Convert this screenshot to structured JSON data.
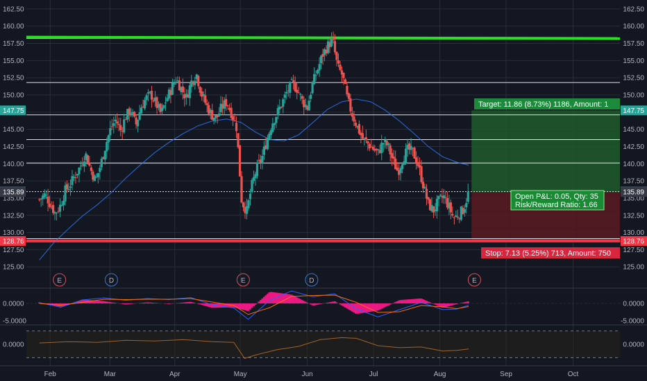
{
  "colors": {
    "background": "#131722",
    "up": "#26a69a",
    "down": "#ef5350",
    "grid": "#2a2e39",
    "text": "#b2b5be",
    "ma": "#3179f5",
    "resistance": "#28e020",
    "stop": "#f23645",
    "target_zone": "#1e5a2a",
    "stop_zone": "#5a1a22",
    "histogram": "#ff1a8c",
    "macd": "#2962ff",
    "signal": "#ff6d00",
    "osc": "#a0632a"
  },
  "price_axis": {
    "ticks": [
      "162.50",
      "160.00",
      "157.50",
      "155.00",
      "152.50",
      "150.00",
      "147.50",
      "145.00",
      "142.50",
      "140.00",
      "137.50",
      "135.00",
      "132.50",
      "130.00",
      "127.50",
      "125.00"
    ],
    "tick_values": [
      162.5,
      160,
      157.5,
      155,
      152.5,
      150,
      147.5,
      145,
      142.5,
      140,
      137.5,
      135,
      132.5,
      130,
      127.5,
      125
    ]
  },
  "price_tags": {
    "left": [
      {
        "label": "147.75",
        "value": 147.75,
        "color": "#26a69a"
      },
      {
        "label": "135.94",
        "value": 135.94,
        "color": "#26a69a"
      },
      {
        "label": "135.89",
        "value": 135.89,
        "color": "#363a45"
      },
      {
        "label": "128.76",
        "value": 128.76,
        "color": "#f23645"
      }
    ],
    "right": [
      {
        "label": "147.75",
        "value": 147.75,
        "color": "#26a69a"
      },
      {
        "label": "135.94",
        "value": 135.94,
        "color": "#26a69a"
      },
      {
        "label": "135.89",
        "value": 135.89,
        "color": "#363a45"
      },
      {
        "label": "128.76",
        "value": 128.76,
        "color": "#f23645"
      }
    ]
  },
  "time_axis": {
    "labels": [
      "Feb",
      "Mar",
      "Apr",
      "May",
      "Jun",
      "Jul",
      "Aug",
      "Sep",
      "Oct"
    ],
    "day_index": [
      15,
      98,
      188,
      279,
      372,
      464,
      556,
      648,
      741
    ]
  },
  "indicator_axes": {
    "macd_ticks": [
      "0.0000",
      "-5.0000"
    ],
    "macd_values": [
      0,
      -5
    ],
    "osc_ticks": [
      "0.0000"
    ]
  },
  "position": {
    "target_label": "Target: 11.86 (8.73%) 1186, Amount: 1",
    "stop_label": "Stop: 7.13 (5.25%) 713, Amount: 750",
    "pnl_line1": "Open P&L: 0.05, Qty: 35",
    "pnl_line2": "Risk/Reward Ratio: 1.66",
    "entry": 135.89,
    "target": 147.75,
    "stop": 128.76
  },
  "events": [
    {
      "label": "E",
      "type": "earnings",
      "day": 28
    },
    {
      "label": "D",
      "type": "dividend",
      "day": 100
    },
    {
      "label": "E",
      "type": "earnings",
      "day": 283
    },
    {
      "label": "D",
      "type": "dividend",
      "day": 378
    },
    {
      "label": "E",
      "type": "earnings",
      "day": 604
    }
  ],
  "chart_data": {
    "type": "candlestick",
    "x_unit": "calendar day offset from Jan 1",
    "horizontal_levels": [
      158.2,
      151.8,
      147.1,
      143.5,
      140.1,
      135.94,
      129.1
    ],
    "resistance_level": 158.3,
    "stop_level": 128.76,
    "close_series": [
      [
        0,
        134.8
      ],
      [
        8,
        135.5
      ],
      [
        15,
        134.2
      ],
      [
        22,
        132.8
      ],
      [
        29,
        133.9
      ],
      [
        36,
        136.1
      ],
      [
        43,
        137.0
      ],
      [
        50,
        138.4
      ],
      [
        57,
        139.6
      ],
      [
        64,
        141.5
      ],
      [
        71,
        139.2
      ],
      [
        78,
        137.5
      ],
      [
        85,
        139.8
      ],
      [
        92,
        142.7
      ],
      [
        99,
        145.1
      ],
      [
        106,
        146.4
      ],
      [
        113,
        144.8
      ],
      [
        120,
        146.9
      ],
      [
        127,
        147.8
      ],
      [
        134,
        145.6
      ],
      [
        141,
        148.2
      ],
      [
        148,
        149.5
      ],
      [
        155,
        150.1
      ],
      [
        162,
        148.7
      ],
      [
        169,
        147.2
      ],
      [
        176,
        149.3
      ],
      [
        183,
        150.8
      ],
      [
        190,
        152.4
      ],
      [
        197,
        150.9
      ],
      [
        204,
        149.6
      ],
      [
        211,
        151.9
      ],
      [
        218,
        153.1
      ],
      [
        225,
        150.2
      ],
      [
        232,
        148.5
      ],
      [
        239,
        147.1
      ],
      [
        246,
        146.6
      ],
      [
        253,
        148.2
      ],
      [
        260,
        149.0
      ],
      [
        267,
        147.3
      ],
      [
        274,
        145.2
      ],
      [
        281,
        134.5
      ],
      [
        288,
        133.1
      ],
      [
        295,
        136.8
      ],
      [
        302,
        139.4
      ],
      [
        309,
        140.8
      ],
      [
        316,
        143.5
      ],
      [
        323,
        145.9
      ],
      [
        330,
        147.3
      ],
      [
        337,
        148.8
      ],
      [
        344,
        150.5
      ],
      [
        351,
        151.6
      ],
      [
        358,
        150.9
      ],
      [
        365,
        149.1
      ],
      [
        372,
        148.2
      ],
      [
        379,
        151.5
      ],
      [
        386,
        153.6
      ],
      [
        393,
        155.8
      ],
      [
        400,
        157.1
      ],
      [
        407,
        158.0
      ],
      [
        414,
        154.1
      ],
      [
        421,
        152.8
      ],
      [
        428,
        149.2
      ],
      [
        435,
        147.0
      ],
      [
        442,
        145.2
      ],
      [
        449,
        143.6
      ],
      [
        456,
        142.9
      ],
      [
        463,
        142.2
      ],
      [
        470,
        141.5
      ],
      [
        477,
        143.1
      ],
      [
        484,
        142.6
      ],
      [
        491,
        140.4
      ],
      [
        498,
        138.8
      ],
      [
        505,
        140.9
      ],
      [
        512,
        142.1
      ],
      [
        519,
        141.6
      ],
      [
        526,
        139.8
      ],
      [
        533,
        136.9
      ],
      [
        540,
        134.1
      ],
      [
        547,
        133.2
      ],
      [
        554,
        134.5
      ],
      [
        561,
        135.3
      ],
      [
        568,
        133.9
      ],
      [
        575,
        132.1
      ],
      [
        582,
        132.6
      ],
      [
        589,
        133.4
      ],
      [
        596,
        135.9
      ]
    ],
    "ma_series": [
      [
        0,
        126.0
      ],
      [
        20,
        128.5
      ],
      [
        40,
        130.5
      ],
      [
        60,
        132.4
      ],
      [
        80,
        134.0
      ],
      [
        100,
        135.8
      ],
      [
        120,
        137.9
      ],
      [
        140,
        139.8
      ],
      [
        160,
        141.6
      ],
      [
        180,
        143.1
      ],
      [
        200,
        144.4
      ],
      [
        220,
        145.5
      ],
      [
        240,
        146.2
      ],
      [
        260,
        146.5
      ],
      [
        280,
        146.0
      ],
      [
        300,
        144.6
      ],
      [
        320,
        143.5
      ],
      [
        340,
        143.3
      ],
      [
        360,
        144.2
      ],
      [
        380,
        146.0
      ],
      [
        400,
        147.9
      ],
      [
        420,
        149.0
      ],
      [
        440,
        149.4
      ],
      [
        460,
        149.0
      ],
      [
        480,
        147.8
      ],
      [
        500,
        146.2
      ],
      [
        520,
        144.4
      ],
      [
        540,
        142.5
      ],
      [
        560,
        141.0
      ],
      [
        580,
        140.2
      ],
      [
        596,
        139.8
      ]
    ],
    "macd_series": [
      [
        0,
        0.2
      ],
      [
        30,
        -1.1
      ],
      [
        60,
        1.0
      ],
      [
        90,
        1.6
      ],
      [
        120,
        0.9
      ],
      [
        150,
        1.4
      ],
      [
        180,
        1.1
      ],
      [
        210,
        1.7
      ],
      [
        240,
        -0.4
      ],
      [
        270,
        -1.3
      ],
      [
        290,
        -4.6
      ],
      [
        320,
        0.9
      ],
      [
        350,
        3.6
      ],
      [
        380,
        1.9
      ],
      [
        410,
        2.8
      ],
      [
        440,
        -1.6
      ],
      [
        470,
        -3.9
      ],
      [
        500,
        -1.8
      ],
      [
        530,
        0.3
      ],
      [
        560,
        -1.8
      ],
      [
        580,
        -1.6
      ],
      [
        596,
        -0.5
      ]
    ],
    "signal_series": [
      [
        0,
        0.0
      ],
      [
        30,
        -0.5
      ],
      [
        60,
        0.3
      ],
      [
        90,
        1.2
      ],
      [
        120,
        1.1
      ],
      [
        150,
        1.2
      ],
      [
        180,
        1.2
      ],
      [
        210,
        1.4
      ],
      [
        240,
        0.4
      ],
      [
        270,
        -0.6
      ],
      [
        290,
        -3.2
      ],
      [
        320,
        -1.2
      ],
      [
        350,
        2.0
      ],
      [
        380,
        2.3
      ],
      [
        410,
        2.4
      ],
      [
        440,
        0.3
      ],
      [
        470,
        -2.6
      ],
      [
        500,
        -2.4
      ],
      [
        530,
        -0.6
      ],
      [
        560,
        -1.0
      ],
      [
        580,
        -1.5
      ],
      [
        596,
        -0.9
      ]
    ],
    "osc_series": [
      [
        0,
        0.2
      ],
      [
        40,
        0.4
      ],
      [
        80,
        0.3
      ],
      [
        120,
        0.6
      ],
      [
        160,
        0.5
      ],
      [
        200,
        0.7
      ],
      [
        240,
        0.4
      ],
      [
        270,
        0.3
      ],
      [
        285,
        -2.1
      ],
      [
        300,
        -1.6
      ],
      [
        330,
        -0.8
      ],
      [
        360,
        -0.3
      ],
      [
        390,
        0.7
      ],
      [
        420,
        1.0
      ],
      [
        440,
        0.9
      ],
      [
        470,
        -0.2
      ],
      [
        500,
        -0.5
      ],
      [
        530,
        -0.4
      ],
      [
        560,
        -1.0
      ],
      [
        580,
        -0.9
      ],
      [
        596,
        -0.7
      ]
    ]
  }
}
